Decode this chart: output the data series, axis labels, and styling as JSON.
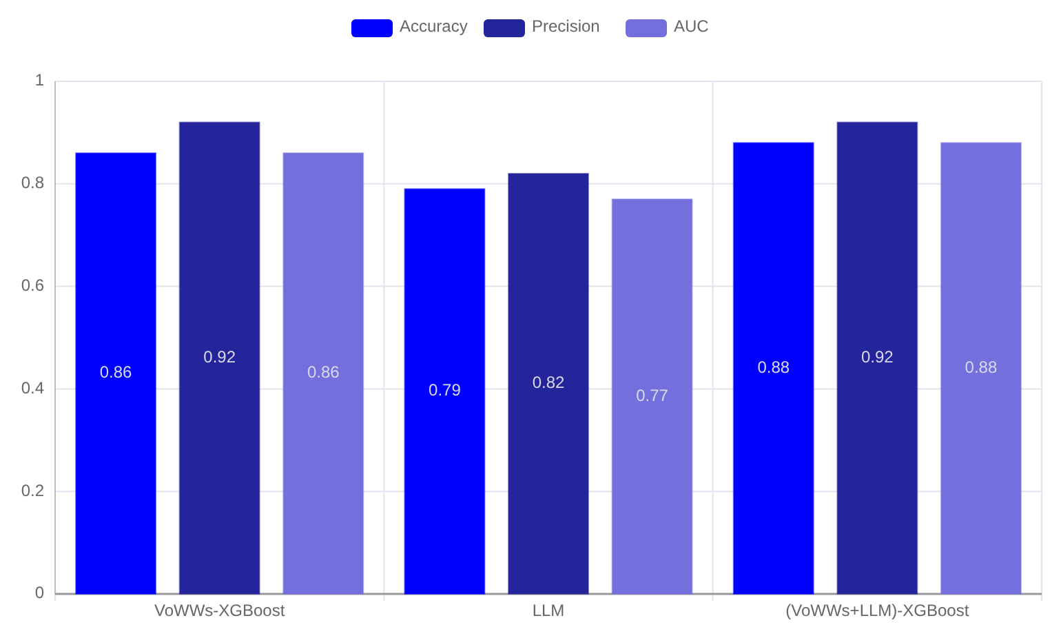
{
  "chart_data": {
    "type": "bar",
    "categories": [
      "VoWWs-XGBoost",
      "LLM",
      "(VoWWs+LLM)-XGBoost"
    ],
    "series": [
      {
        "name": "Accuracy",
        "color": "#0000ff",
        "values": [
          0.86,
          0.79,
          0.88
        ]
      },
      {
        "name": "Precision",
        "color": "#25259b",
        "values": [
          0.92,
          0.82,
          0.92
        ]
      },
      {
        "name": "AUC",
        "color": "#7370dd",
        "values": [
          0.86,
          0.77,
          0.88
        ]
      }
    ],
    "ylim": [
      0,
      1
    ],
    "yticks": [
      0,
      0.2,
      0.4,
      0.6,
      0.8,
      1
    ],
    "grid": true,
    "legend": "top",
    "data_labels": true
  }
}
